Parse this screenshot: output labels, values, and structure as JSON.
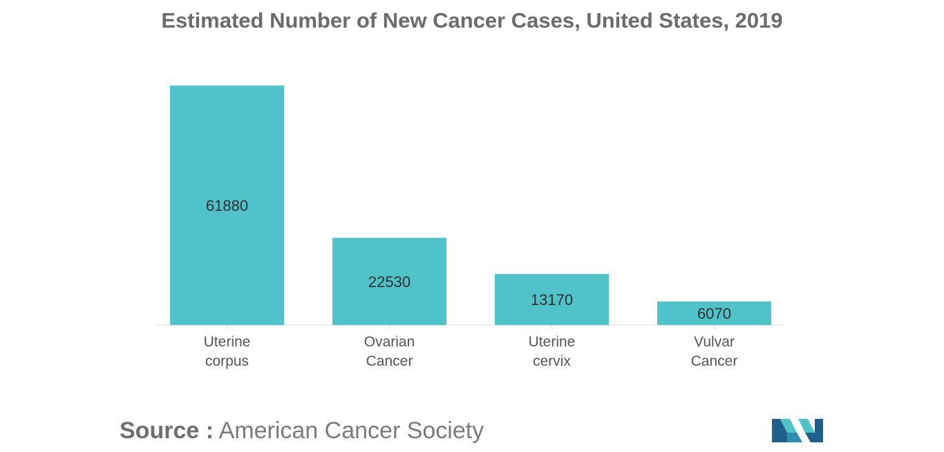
{
  "chart_data": {
    "type": "bar",
    "title": "Estimated Number of New Cancer Cases, United States, 2019",
    "categories": [
      [
        "Uterine",
        "corpus"
      ],
      [
        "Ovarian",
        "Cancer"
      ],
      [
        "Uterine",
        "cervix"
      ],
      [
        "Vulvar",
        "Cancer"
      ]
    ],
    "values": [
      61880,
      22530,
      13170,
      6070
    ],
    "value_labels": [
      "61880",
      "22530",
      "13170",
      "6070"
    ],
    "xlabel": "",
    "ylabel": "",
    "ylim": [
      0,
      61880
    ],
    "grid": false,
    "legend": "none"
  },
  "source": {
    "label": "Source :",
    "text": "American Cancer Society"
  },
  "colors": {
    "bar": "#4fc3c9",
    "axis": "#d9d9d9",
    "title": "#6b6b6b",
    "text": "#555555",
    "logo_dark": "#1f5f8b",
    "logo_light": "#4fc3c9"
  },
  "logo": {
    "name": "mordor-intelligence-logo"
  }
}
